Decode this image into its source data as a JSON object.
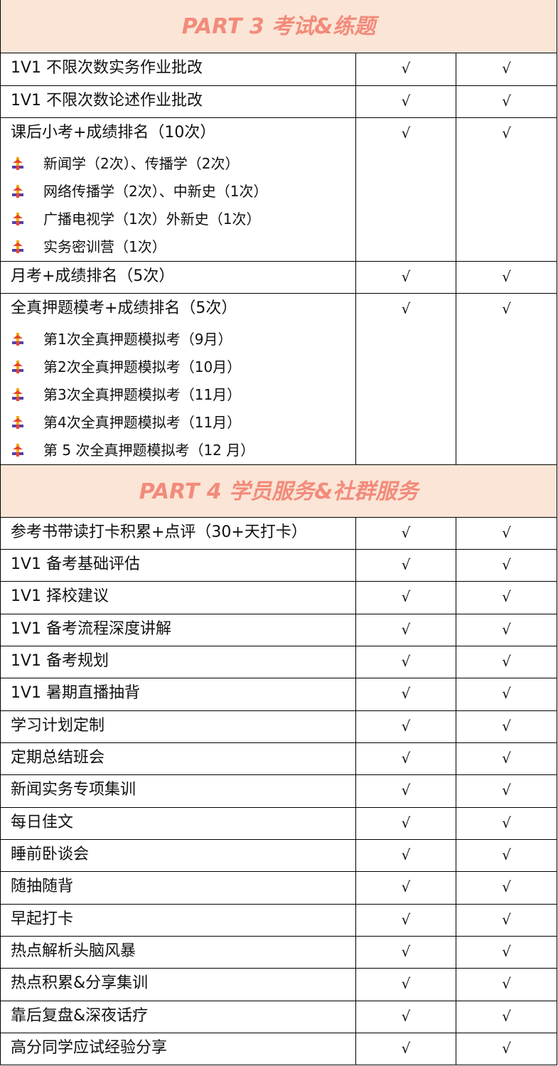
{
  "sections": [
    {
      "title": "PART 3 考试&练题",
      "rows": [
        {
          "label": "1V1 不限次数实务作业批改",
          "checks": [
            "√",
            "√"
          ]
        },
        {
          "label": "1V1 不限次数论述作业批改",
          "checks": [
            "√",
            "√"
          ]
        },
        {
          "label": "课后小考+成绩排名（10次）",
          "checks": [
            "√",
            "√"
          ],
          "items": [
            "新闻学（2次）、传播学（2次）",
            "网络传播学（2次）、中新史（1次）",
            "广播电视学（1次）外新史（1次）",
            "实务密训营（1次）"
          ]
        },
        {
          "label": "月考+成绩排名（5次）",
          "checks": [
            "√",
            "√"
          ]
        },
        {
          "label": "全真押题模考+成绩排名（5次）",
          "checks": [
            "√",
            "√"
          ],
          "items": [
            "第1次全真押题模拟考（9月）",
            "第2次全真押题模拟考（10月）",
            "第3次全真押题模拟考（11月）",
            "第4次全真押题模拟考（11月）",
            "第 5 次全真押题模拟考（12 月）"
          ]
        }
      ]
    },
    {
      "title": "PART 4 学员服务&社群服务",
      "rows": [
        {
          "label": "参考书带读打卡积累+点评（30+天打卡）",
          "checks": [
            "√",
            "√"
          ]
        },
        {
          "label": "1V1 备考基础评估",
          "checks": [
            "√",
            "√"
          ]
        },
        {
          "label": "1V1 择校建议",
          "checks": [
            "√",
            "√"
          ]
        },
        {
          "label": "1V1 备考流程深度讲解",
          "checks": [
            "√",
            "√"
          ]
        },
        {
          "label": "1V1 备考规划",
          "checks": [
            "√",
            "√"
          ]
        },
        {
          "label": "1V1 暑期直播抽背",
          "checks": [
            "√",
            "√"
          ]
        },
        {
          "label": "学习计划定制",
          "checks": [
            "√",
            "√"
          ]
        },
        {
          "label": "定期总结班会",
          "checks": [
            "√",
            "√"
          ]
        },
        {
          "label": "新闻实务专项集训",
          "checks": [
            "√",
            "√"
          ]
        },
        {
          "label": "每日佳文",
          "checks": [
            "√",
            "√"
          ]
        },
        {
          "label": "睡前卧谈会",
          "checks": [
            "√",
            "√"
          ]
        },
        {
          "label": "随抽随背",
          "checks": [
            "√",
            "√"
          ]
        },
        {
          "label": "早起打卡",
          "checks": [
            "√",
            "√"
          ]
        },
        {
          "label": "热点解析头脑风暴",
          "checks": [
            "√",
            "√"
          ]
        },
        {
          "label": "热点积累&分享集训",
          "checks": [
            "√",
            "√"
          ]
        },
        {
          "label": "靠后复盘&深夜话疗",
          "checks": [
            "√",
            "√"
          ]
        },
        {
          "label": "高分同学应试经验分享",
          "checks": [
            "√",
            "√"
          ]
        }
      ]
    }
  ]
}
